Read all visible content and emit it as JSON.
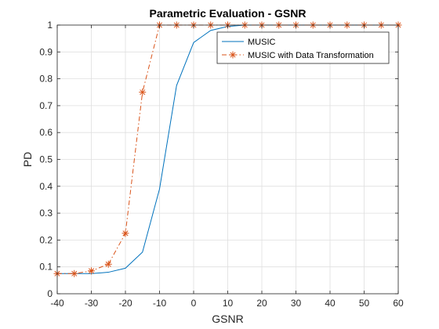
{
  "chart_data": {
    "type": "line",
    "title": "Parametric Evaluation - GSNR",
    "xlabel": "GSNR",
    "ylabel": "PD",
    "xlim": [
      -40,
      60
    ],
    "ylim": [
      0,
      1
    ],
    "xticks": [
      "-40",
      "-30",
      "-20",
      "-10",
      "0",
      "10",
      "20",
      "30",
      "40",
      "50",
      "60"
    ],
    "yticks": [
      "0",
      "0.1",
      "0.2",
      "0.3",
      "0.4",
      "0.5",
      "0.6",
      "0.7",
      "0.8",
      "0.9",
      "1"
    ],
    "grid": true,
    "legend_position": "top-right",
    "x": [
      -40,
      -35,
      -30,
      -25,
      -20,
      -15,
      -10,
      -5,
      0,
      5,
      10,
      15,
      20,
      25,
      30,
      35,
      40,
      45,
      50,
      55,
      60
    ],
    "series": [
      {
        "name": "MUSIC",
        "color": "#0072BD",
        "style": "solid",
        "marker": "none",
        "values": [
          0.075,
          0.075,
          0.075,
          0.08,
          0.095,
          0.155,
          0.39,
          0.775,
          0.935,
          0.98,
          0.995,
          1,
          1,
          1,
          1,
          1,
          1,
          1,
          1,
          1,
          1
        ]
      },
      {
        "name": "MUSIC with Data Transformation",
        "color": "#D95319",
        "style": "dashdot",
        "marker": "asterisk",
        "values": [
          0.075,
          0.075,
          0.085,
          0.11,
          0.225,
          0.75,
          1,
          1,
          1,
          1,
          1,
          1,
          1,
          1,
          1,
          1,
          1,
          1,
          1,
          1,
          1
        ]
      }
    ]
  }
}
